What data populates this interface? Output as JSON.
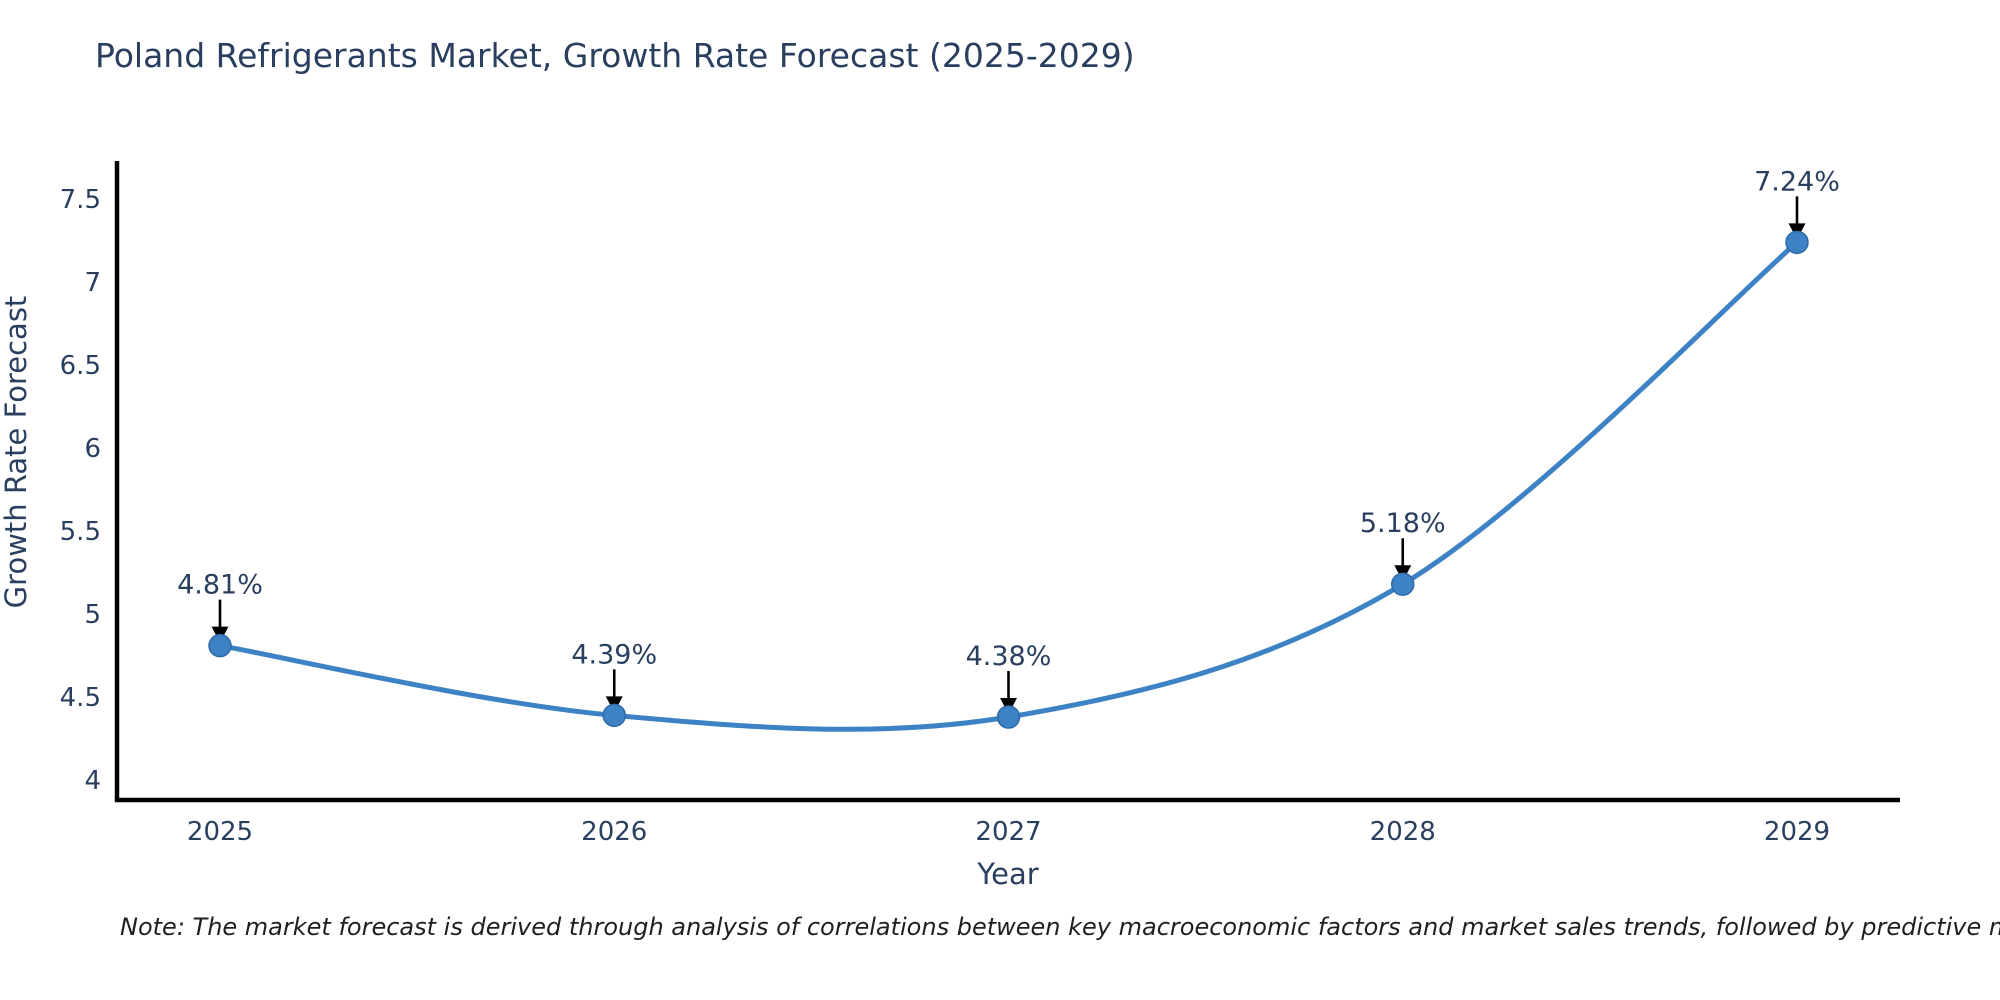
{
  "page": {
    "note": "Note: The market forecast is derived through analysis of correlations between key macroeconomic factors and market sales trends, followed by predictive modeling to project future sales"
  },
  "chart_data": {
    "type": "line",
    "title": "Poland Refrigerants Market, Growth Rate Forecast (2025-2029)",
    "x": [
      "2025",
      "2026",
      "2027",
      "2028",
      "2029"
    ],
    "series": [
      {
        "name": "Growth Rate Forecast",
        "values": [
          4.81,
          4.39,
          4.38,
          5.18,
          7.24
        ]
      }
    ],
    "point_labels": [
      "4.81%",
      "4.39%",
      "4.38%",
      "5.18%",
      "7.24%"
    ],
    "xlabel": "Year",
    "ylabel": "Growth Rate Forecast",
    "yticks": [
      "4",
      "4.5",
      "5",
      "5.5",
      "6",
      "6.5",
      "7",
      "7.5"
    ],
    "ylim": [
      3.88,
      7.73
    ],
    "grid": false,
    "legend": "none",
    "curve": "spline",
    "line_color": "#3d82c4",
    "marker_color": "#3d82c4",
    "marker_edge_color": "#2f6ba6",
    "axis_color": "#000000",
    "arrow_color": "#000000",
    "text_color": "#2a3f5f"
  }
}
